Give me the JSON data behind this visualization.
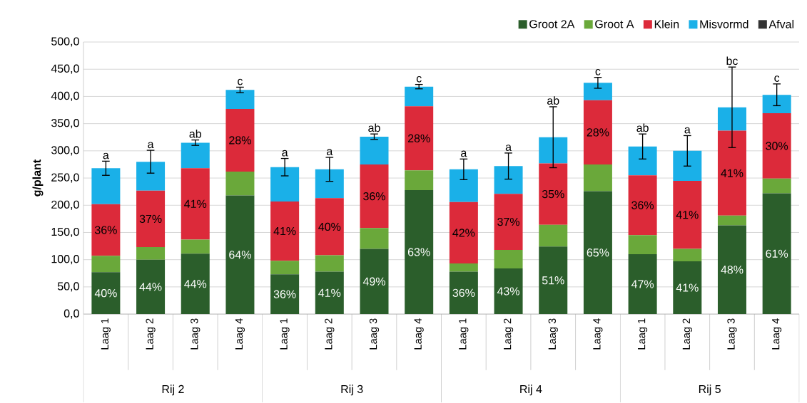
{
  "chart_data": {
    "type": "bar",
    "stacked": true,
    "ylabel": "g/plant",
    "categories": [
      "Laag 1",
      "Laag 2",
      "Laag 3",
      "Laag 4",
      "Laag 1",
      "Laag 2",
      "Laag 3",
      "Laag 4",
      "Laag 1",
      "Laag 2",
      "Laag 3",
      "Laag 4",
      "Laag 1",
      "Laag 2",
      "Laag 3",
      "Laag 4"
    ],
    "series": [
      {
        "name": "Groot 2A",
        "color": "#2b5e2b",
        "values": [
          77,
          100,
          111,
          218,
          73,
          78,
          120,
          228,
          78,
          84,
          124,
          226,
          110,
          97,
          163,
          222
        ]
      },
      {
        "name": "Groot A",
        "color": "#6aa83a",
        "values": [
          30,
          23,
          26,
          44,
          25,
          30,
          38,
          36,
          15,
          34,
          40,
          49,
          35,
          23,
          18,
          27
        ]
      },
      {
        "name": "Klein",
        "color": "#dc2a3a",
        "values": [
          95,
          104,
          131,
          115,
          109,
          105,
          117,
          118,
          113,
          103,
          113,
          118,
          110,
          125,
          156,
          120
        ]
      },
      {
        "name": "Misvormd",
        "color": "#1ab0e8",
        "values": [
          66,
          53,
          47,
          35,
          63,
          53,
          51,
          36,
          60,
          51,
          48,
          32,
          53,
          55,
          43,
          34
        ],
        "errors": [
          13,
          21,
          5,
          5,
          16,
          22,
          5,
          4,
          19,
          24,
          56,
          10,
          23,
          28,
          74,
          20
        ]
      },
      {
        "name": "Afval",
        "color": "#333333",
        "values": [
          0,
          0,
          0,
          0,
          0,
          0,
          0,
          0,
          0,
          0,
          0,
          0,
          0,
          0,
          0,
          0
        ]
      }
    ],
    "annotations": [
      "a",
      "a",
      "ab",
      "c",
      "a",
      "a",
      "ab",
      "c",
      "a",
      "a",
      "ab",
      "c",
      "ab",
      "a",
      "bc",
      "c",
      "Rij 2",
      "Rij 3",
      "Rij 4",
      "Rij 5",
      "40%",
      "44%",
      "44%",
      "64%",
      "36%",
      "41%",
      "49%",
      "63%",
      "36%",
      "43%",
      "51%",
      "65%",
      "47%",
      "41%",
      "48%",
      "61%",
      "36%",
      "37%",
      "41%",
      "28%",
      "41%",
      "40%",
      "36%",
      "28%",
      "42%",
      "37%",
      "35%",
      "28%",
      "36%",
      "41%",
      "41%",
      "30%"
    ],
    "ylim": [
      0,
      500
    ],
    "yticks": [
      {
        "value": 0,
        "label": "0,0"
      },
      {
        "value": 50,
        "label": "50,0"
      },
      {
        "value": 100,
        "label": "100,0"
      },
      {
        "value": 150,
        "label": "150,0"
      },
      {
        "value": 200,
        "label": "200,0"
      },
      {
        "value": 250,
        "label": "250,0"
      },
      {
        "value": 300,
        "label": "300,0"
      },
      {
        "value": 350,
        "label": "350,0"
      },
      {
        "value": 400,
        "label": "400,0"
      },
      {
        "value": 450,
        "label": "450,0"
      },
      {
        "value": 500,
        "label": "500,0"
      }
    ],
    "grid": "y",
    "legend": "top right"
  }
}
